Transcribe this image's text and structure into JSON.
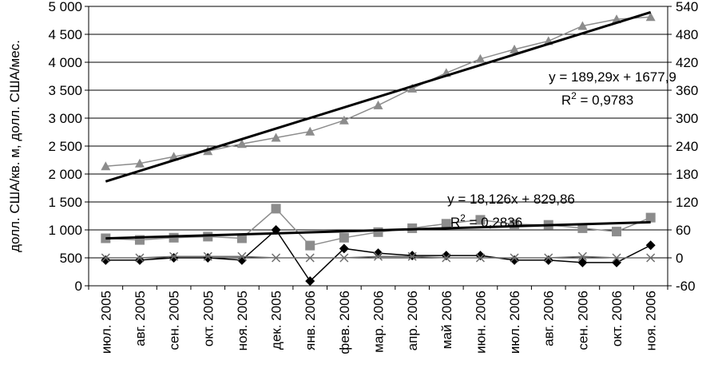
{
  "chart_data": {
    "type": "line",
    "ylabel": "долл. США/кв. м, долл. США/мес.",
    "categories": [
      "июл. 2005",
      "авг. 2005",
      "сен. 2005",
      "окт. 2005",
      "ноя. 2005",
      "дек. 2005",
      "янв. 2006",
      "фев. 2006",
      "мар. 2006",
      "апр. 2006",
      "май 2006",
      "июн. 2006",
      "июл. 2006",
      "авг. 2006",
      "сен. 2006",
      "окт. 2006",
      "ноя. 2006"
    ],
    "ylim_left": [
      0,
      5000
    ],
    "yticks_left": [
      "0",
      "500",
      "1 000",
      "1 500",
      "2 000",
      "2 500",
      "3 000",
      "3 500",
      "4 000",
      "4 500",
      "5 000"
    ],
    "ylim_right": [
      -60,
      540
    ],
    "yticks_right": [
      "-60",
      "0",
      "60",
      "120",
      "180",
      "240",
      "300",
      "360",
      "420",
      "480",
      "540"
    ],
    "grid": "horizontal",
    "series": [
      {
        "marker": "triangle",
        "color": "#8c8c8c",
        "axis": "left",
        "values": [
          2140,
          2190,
          2310,
          2410,
          2540,
          2650,
          2760,
          2960,
          3230,
          3530,
          3810,
          4060,
          4230,
          4380,
          4650,
          4770,
          4810
        ]
      },
      {
        "marker": "square",
        "color": "#8c8c8c",
        "axis": "left",
        "values": [
          850,
          820,
          860,
          880,
          850,
          1380,
          720,
          860,
          960,
          1030,
          1110,
          1180,
          1100,
          1090,
          1030,
          970,
          1220
        ]
      },
      {
        "marker": "diamond",
        "color": "#000000",
        "axis": "right",
        "values": [
          -5,
          -5,
          0,
          0,
          -5,
          60,
          -50,
          20,
          10,
          5,
          5,
          5,
          -5,
          -5,
          -10,
          -10,
          27
        ]
      },
      {
        "marker": "x",
        "color": "#6e6e6e",
        "axis": "right",
        "values": [
          0,
          0,
          3,
          3,
          3,
          0,
          0,
          0,
          3,
          3,
          0,
          0,
          0,
          0,
          3,
          0,
          0
        ]
      }
    ],
    "trendlines": [
      {
        "series_index": 0,
        "slope": 189.29,
        "intercept": 1677.9,
        "equation": "y = 189,29x + 1677,9",
        "r2_prefix": "R",
        "r2_sup": "2",
        "r2_value": " = 0,9783"
      },
      {
        "series_index": 1,
        "slope": 18.126,
        "intercept": 829.86,
        "equation": "y = 18,126x + 829,86",
        "r2_prefix": "R",
        "r2_sup": "2",
        "r2_value": " = 0,2836"
      }
    ]
  }
}
